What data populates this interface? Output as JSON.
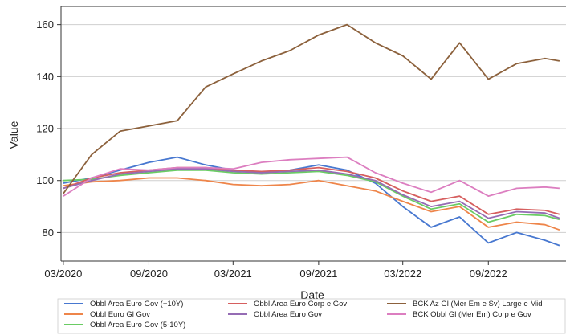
{
  "chart_data": {
    "type": "line",
    "xlabel": "Date",
    "ylabel": "Value",
    "x_ticks": [
      "03/2020",
      "09/2020",
      "03/2021",
      "09/2021",
      "03/2022",
      "09/2022"
    ],
    "x_tick_values": [
      "2020-03",
      "2020-09",
      "2021-03",
      "2021-09",
      "2022-03",
      "2022-09"
    ],
    "xlim": [
      "2020-02-25",
      "2023-02-15"
    ],
    "y_ticks": [
      80,
      100,
      120,
      140,
      160
    ],
    "ylim": [
      69,
      167
    ],
    "grid": "horizontal",
    "legend_position": "bottom",
    "x": [
      "2020-03",
      "2020-05",
      "2020-07",
      "2020-09",
      "2020-11",
      "2021-01",
      "2021-03",
      "2021-05",
      "2021-07",
      "2021-09",
      "2021-11",
      "2022-01",
      "2022-03",
      "2022-05",
      "2022-07",
      "2022-09",
      "2022-11",
      "2023-01",
      "2023-02"
    ],
    "series": [
      {
        "name": "Obbl Area Euro Gov (+10Y)",
        "color": "#4878d0",
        "values": [
          99,
          101,
          104,
          107,
          109,
          106,
          104,
          103,
          104,
          106,
          104,
          99,
          90,
          82,
          86,
          76,
          80,
          77,
          75
        ]
      },
      {
        "name": "Obbl Euro Gl Gov",
        "color": "#ee854a",
        "values": [
          98,
          99.5,
          100,
          101,
          101,
          100,
          98.5,
          98,
          98.5,
          100,
          98,
          96,
          92,
          88,
          90,
          82,
          84,
          83,
          81
        ]
      },
      {
        "name": "Obbl Area Euro Gov (5-10Y)",
        "color": "#6acc64",
        "values": [
          100,
          100.5,
          102,
          103,
          104,
          104,
          103,
          102.5,
          103,
          103.5,
          102,
          99.5,
          94,
          89,
          91,
          84,
          87,
          86.5,
          85
        ]
      },
      {
        "name": "Obbl Area Euro Corp e Gov",
        "color": "#d65f5f",
        "values": [
          97,
          101,
          103,
          104,
          105,
          105,
          104,
          103.5,
          104,
          105,
          103.5,
          101,
          96,
          92,
          94,
          87,
          89,
          88.5,
          87
        ]
      },
      {
        "name": "Obbl Area Euro Gov",
        "color": "#956cb4",
        "values": [
          97,
          100,
          102.5,
          103.5,
          104.5,
          104.5,
          103.5,
          103,
          103.5,
          104,
          102.5,
          100,
          94.5,
          90,
          92,
          85.5,
          88,
          87.5,
          85.5
        ]
      },
      {
        "name": "BCK Az Gl (Mer Em e Sv) Large e Mid",
        "color": "#8c613c",
        "values": [
          95,
          110,
          119,
          121,
          123,
          136,
          141,
          146,
          150,
          156,
          160,
          153,
          148,
          139,
          153,
          139,
          145,
          147,
          146
        ]
      },
      {
        "name": "BCK Obbl Gl (Mer Em) Corp e Gov",
        "color": "#dc7ec0",
        "values": [
          94,
          101,
          104.5,
          104,
          105,
          105,
          104.5,
          107,
          108,
          108.5,
          109,
          103,
          99,
          95.5,
          100,
          94,
          97,
          97.5,
          97
        ]
      }
    ]
  }
}
